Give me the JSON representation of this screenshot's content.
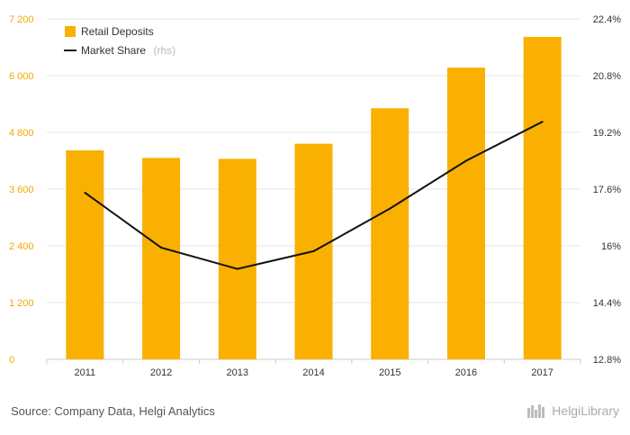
{
  "chart_data": {
    "type": "bar",
    "categories": [
      "2011",
      "2012",
      "2013",
      "2014",
      "2015",
      "2016",
      "2017"
    ],
    "series": [
      {
        "name": "Retail Deposits",
        "type": "bar",
        "axis": "left",
        "values": [
          4420,
          4260,
          4240,
          4560,
          5310,
          6170,
          6820
        ]
      },
      {
        "name": "Market Share",
        "name_suffix": "(rhs)",
        "type": "line",
        "axis": "right",
        "values": [
          17.5,
          15.95,
          15.35,
          15.85,
          17.05,
          18.4,
          19.5
        ]
      }
    ],
    "left_axis": {
      "min": 0,
      "max": 7200,
      "ticks": [
        "0",
        "1 200",
        "2 400",
        "3 600",
        "4 800",
        "6 000",
        "7 200"
      ],
      "tick_values": [
        0,
        1200,
        2400,
        3600,
        4800,
        6000,
        7200
      ]
    },
    "right_axis": {
      "min": 12.8,
      "max": 22.4,
      "ticks": [
        "12.8%",
        "14.4%",
        "16%",
        "17.6%",
        "19.2%",
        "20.8%",
        "22.4%"
      ],
      "tick_values": [
        12.8,
        14.4,
        16.0,
        17.6,
        19.2,
        20.8,
        22.4
      ]
    },
    "grid": true,
    "legend": "top-left",
    "colors": {
      "bar": "#f9b000",
      "line": "#111111",
      "grid": "#e6e6e6",
      "left_tick": "#f5a800"
    }
  },
  "footer": {
    "source": "Source: Company Data, Helgi Analytics",
    "logo_text": "HelgiLibrary"
  }
}
